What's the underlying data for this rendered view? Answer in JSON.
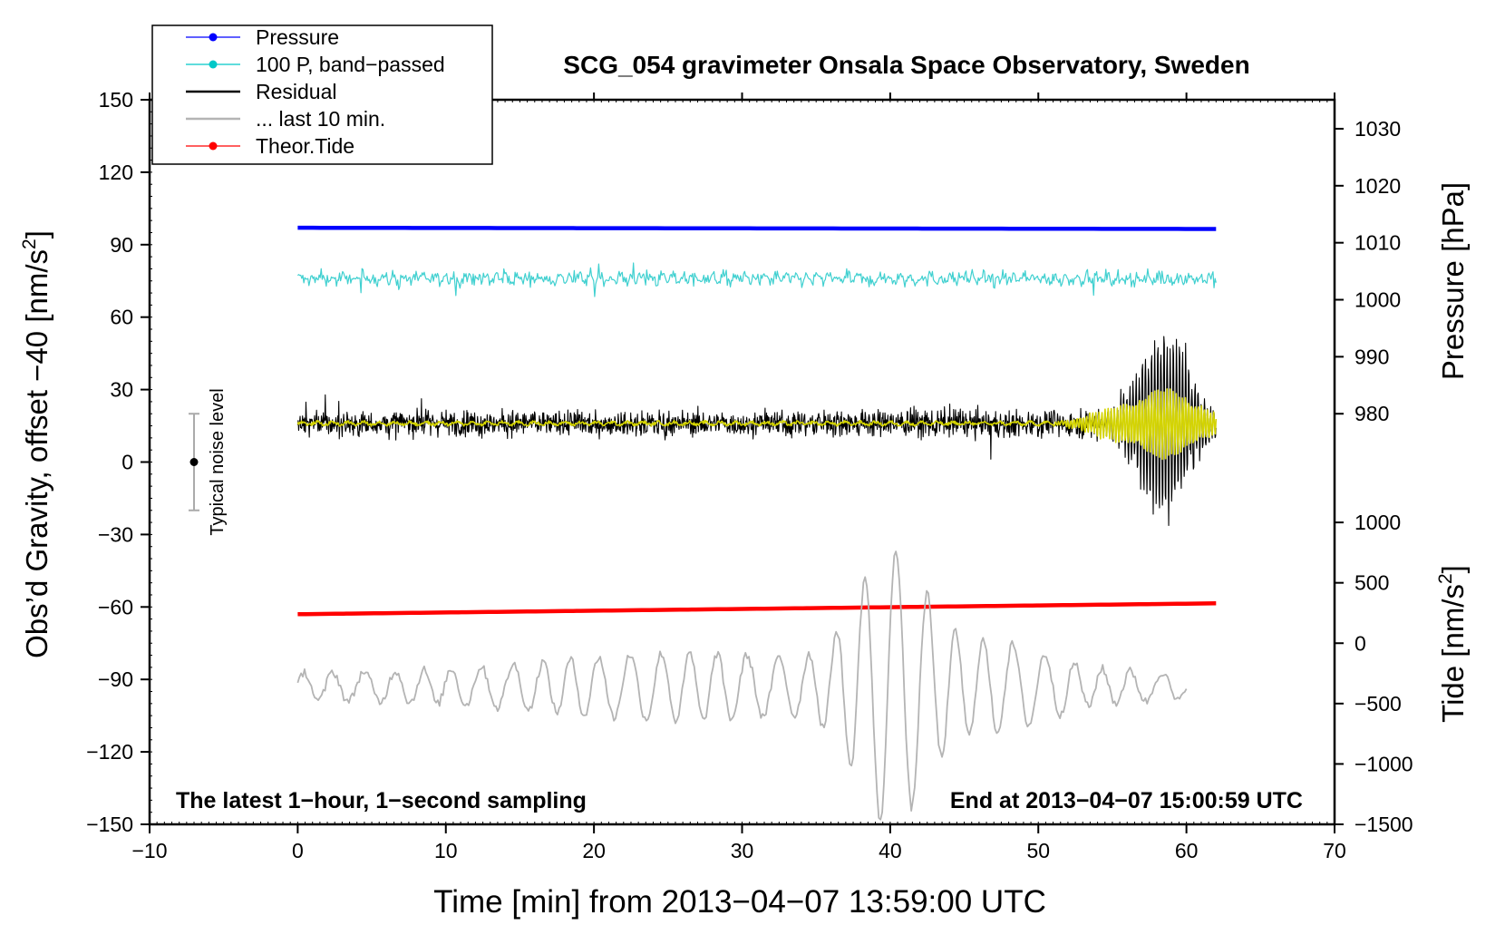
{
  "chart_data": {
    "type": "line",
    "title": "SCG_054 gravimeter Onsala Space Observatory, Sweden",
    "xlabel": "Time [min] from 2013−04−07 13:59:00 UTC",
    "ylabel_left": "Obs’d Gravity, offset −40 [nm/s",
    "ylabel_left_sup": "2",
    "ylabel_left_end": "]",
    "ylabel_right_pressure": "Pressure [hPa]",
    "ylabel_right_tide": "Tide [nm/s",
    "ylabel_right_tide_sup": "2",
    "ylabel_right_tide_end": "]",
    "xlim": [
      -10,
      70
    ],
    "ylim": [
      -150,
      150
    ],
    "x_ticks": [
      -10,
      0,
      10,
      20,
      30,
      40,
      50,
      60,
      70
    ],
    "x_tick_labels": [
      "−10",
      "0",
      "10",
      "20",
      "30",
      "40",
      "50",
      "60",
      "70"
    ],
    "y_ticks": [
      -150,
      -120,
      -90,
      -60,
      -30,
      0,
      30,
      60,
      90,
      120,
      150
    ],
    "y_tick_labels": [
      "−150",
      "−120",
      "−90",
      "−60",
      "−30",
      "0",
      "30",
      "60",
      "90",
      "120",
      "150"
    ],
    "pressure_axis": {
      "ticks": [
        980,
        990,
        1000,
        1010,
        1020,
        1030
      ],
      "tick_labels": [
        "980",
        "990",
        "1000",
        "1010",
        "1020",
        "1030"
      ],
      "map_at_y": [
        [
          980,
          20
        ],
        [
          1030,
          138
        ]
      ]
    },
    "tide_axis": {
      "ticks": [
        -1500,
        -1000,
        -500,
        0,
        500,
        1000
      ],
      "tick_labels": [
        "−1500",
        "−1000",
        "−500",
        "0",
        "500",
        "1000"
      ],
      "map_at_y": [
        [
          -1500,
          -150
        ],
        [
          1000,
          -25
        ]
      ]
    },
    "legend": {
      "placement": "top-left",
      "entries": [
        {
          "label": "Pressure",
          "color": "#0000ff",
          "marker": true
        },
        {
          "label": "100 P, band−passed",
          "color": "#00c8c8",
          "marker": true
        },
        {
          "label": "Residual",
          "color": "#000000",
          "marker": false
        },
        {
          "label": "... last 10 min.",
          "color": "#b4b4b4",
          "marker": false
        },
        {
          "label": "Theor.Tide",
          "color": "#ff0000",
          "marker": true
        }
      ]
    },
    "series": [
      {
        "name": "Pressure",
        "color": "#0000ff",
        "x_range": [
          0,
          62
        ],
        "y_start": 97,
        "y_end": 96.5
      },
      {
        "name": "100 P, band−passed",
        "color": "#40d0d0",
        "x_range": [
          0,
          62
        ],
        "y_center": 76,
        "amplitude": 3
      },
      {
        "name": "Residual",
        "color": "#000000",
        "x_range": [
          0,
          62
        ],
        "y_center": 16,
        "amplitude": 5,
        "wave_start": 52,
        "wave_peak": 58.7,
        "wave_amplitude": 40
      },
      {
        "name": "Residual smoothed",
        "color": "#d4d400",
        "x_range": [
          0,
          62
        ],
        "y_center": 16,
        "amplitude": 1
      },
      {
        "name": "Theor.Tide",
        "color": "#ff0000",
        "x_range": [
          0,
          62
        ],
        "y_start": -63,
        "y_end": -58.5
      },
      {
        "name": "... last 10 min.",
        "color": "#b4b4b4",
        "x_range": [
          0,
          60
        ],
        "y_center": -93,
        "wave_peak": 40,
        "wave_amplitude": 48
      }
    ],
    "noise_bar": {
      "x": -7,
      "y": 0,
      "y_low": -20,
      "y_high": 20,
      "label": "Typical noise level"
    },
    "annotations": {
      "bottom_left": "The latest 1−hour, 1−second sampling",
      "bottom_right": "End at 2013−04−07 15:00:59 UTC"
    }
  }
}
